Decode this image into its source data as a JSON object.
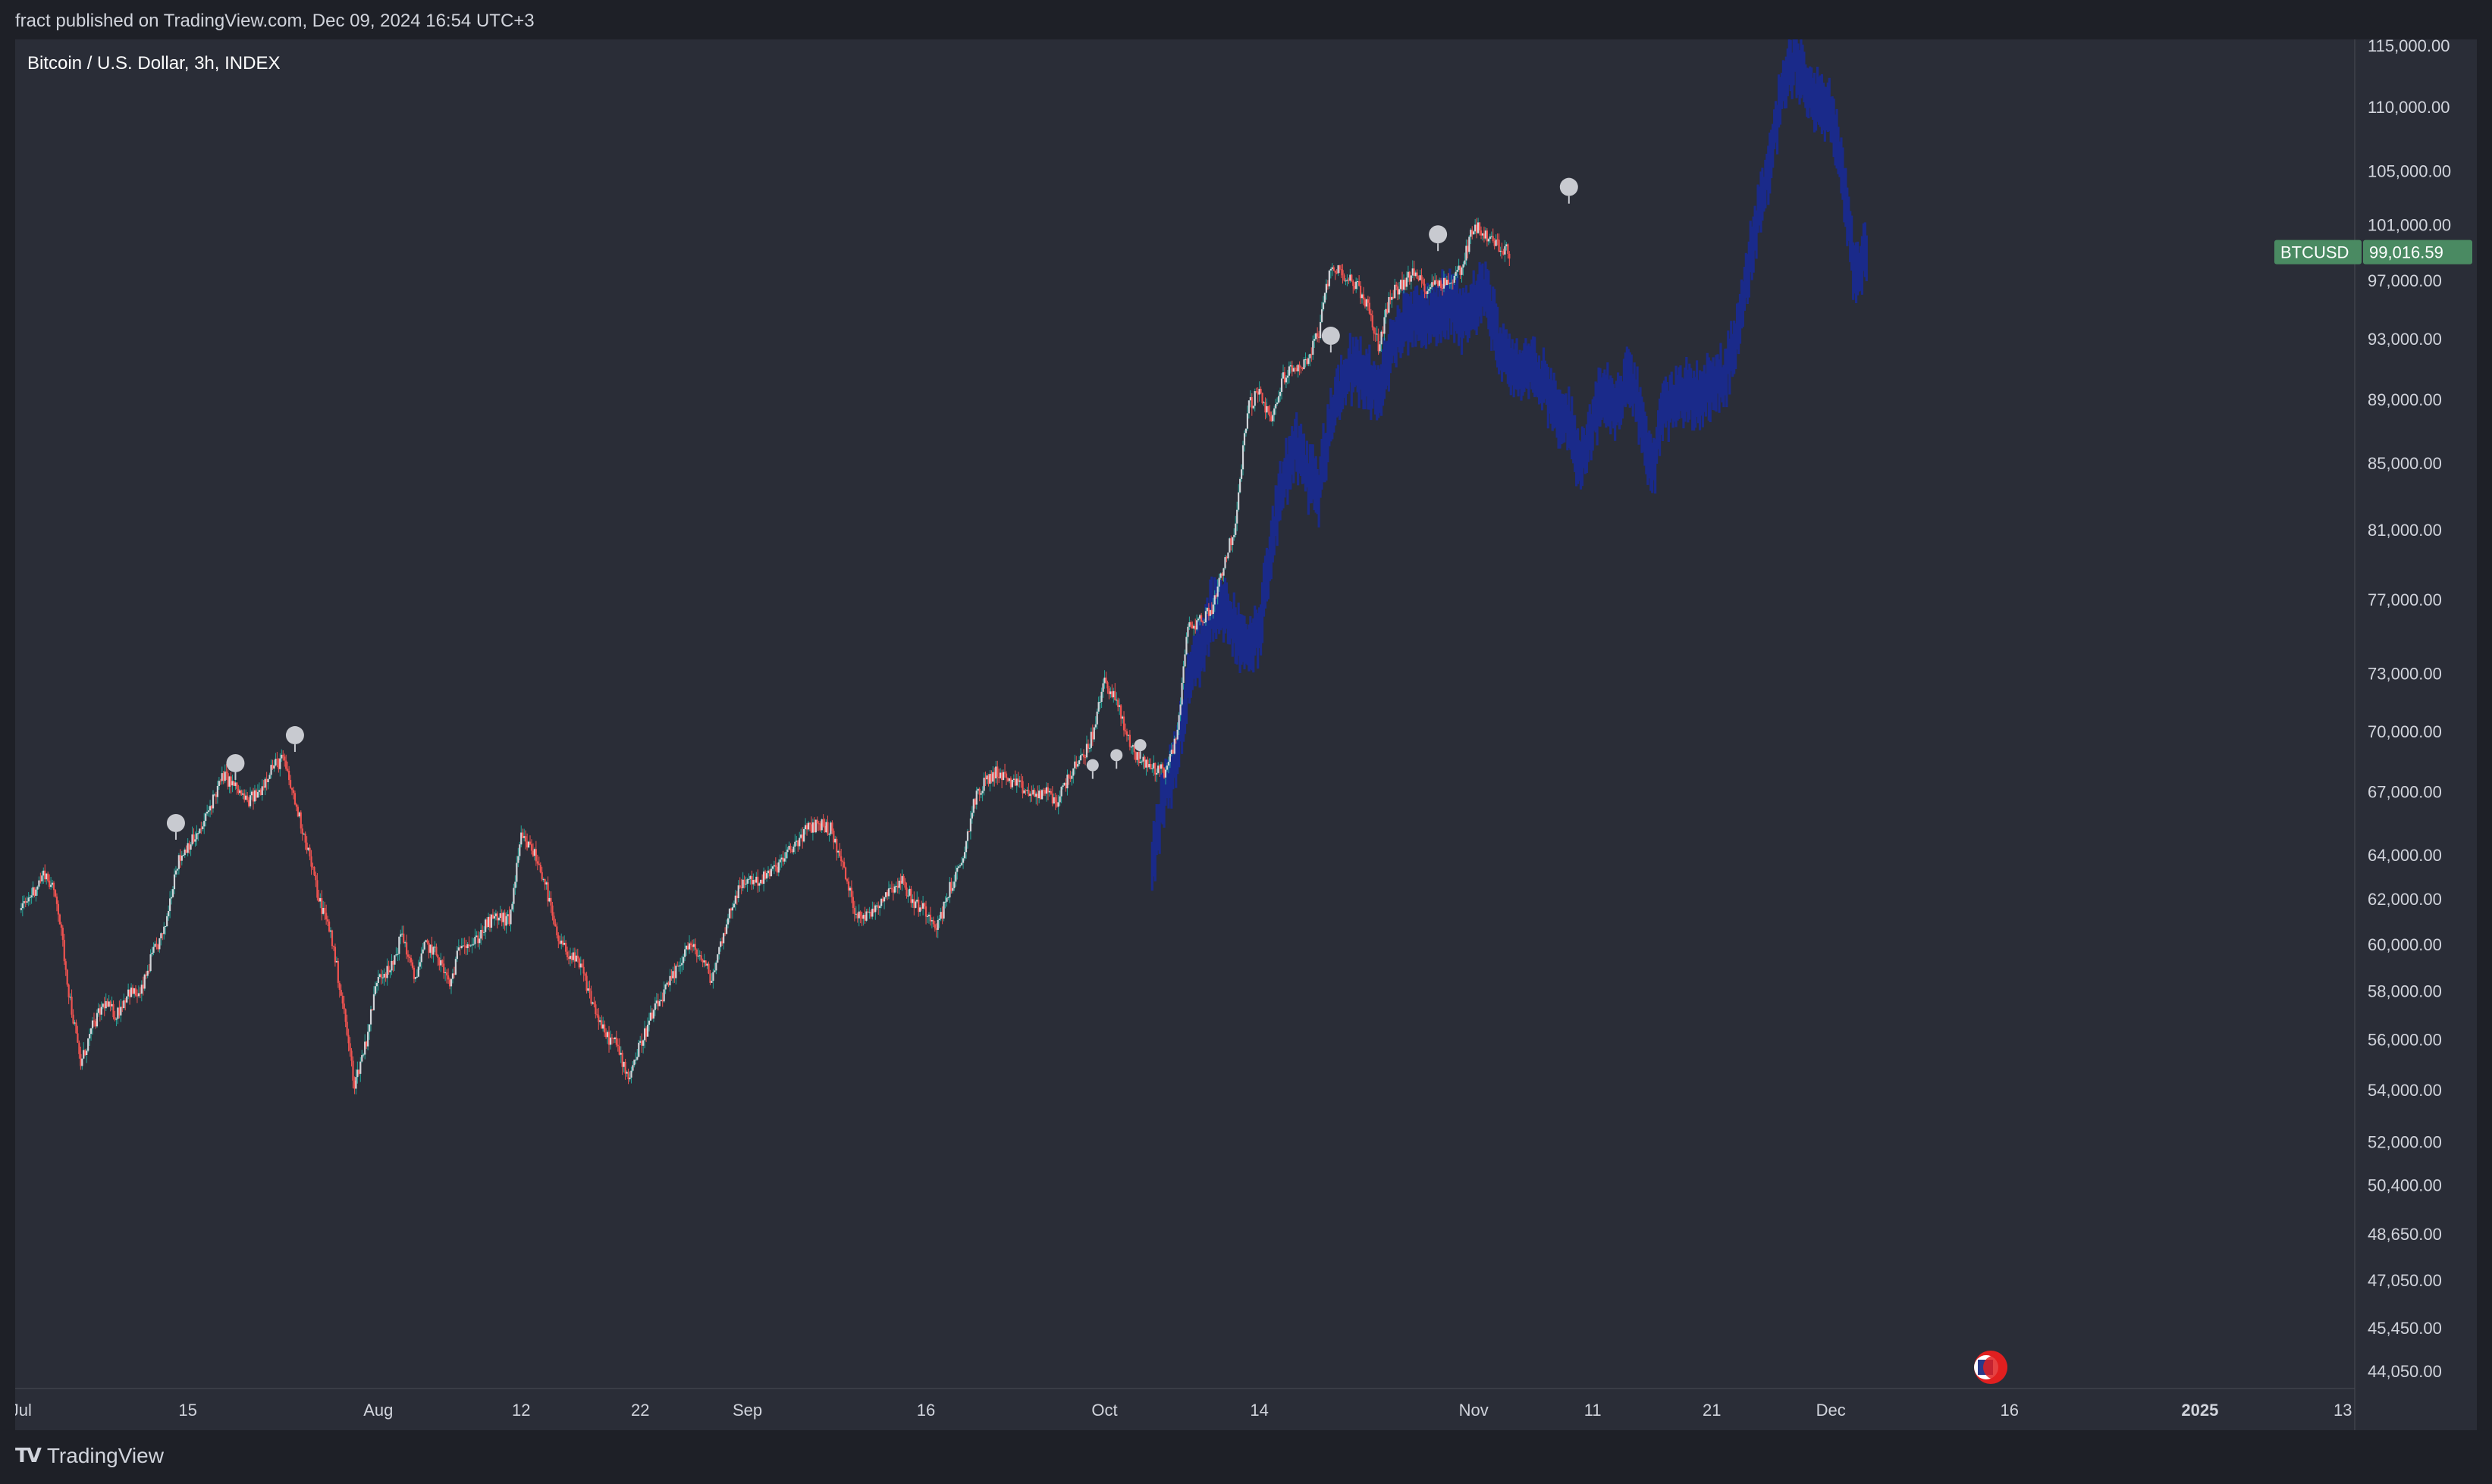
{
  "header": {
    "published": "fract published on TradingView.com, Dec 09, 2024 16:54 UTC+3"
  },
  "symbol": {
    "title": "Bitcoin / U.S. Dollar, 3h, INDEX"
  },
  "price_tag": {
    "symbol": "BTCUSD",
    "price": "99,016.59",
    "value": 99016.59,
    "color": "#4a8a62"
  },
  "footer": {
    "brand": "TradingView",
    "logo_icon": "tradingview-logo-icon"
  },
  "event_icon": "us-flag-event-icon",
  "colors": {
    "up": "#26a69a",
    "down": "#ef5350",
    "projection": "#1a2a8a",
    "marker": "#c8cad0"
  },
  "chart_data": {
    "type": "candlestick",
    "title": "Bitcoin / U.S. Dollar, 3h, INDEX",
    "scale": "log",
    "ylim": [
      43500,
      115500
    ],
    "y_ticks": [
      "115,000.00",
      "110,000.00",
      "105,000.00",
      "101,000.00",
      "97,000.00",
      "93,000.00",
      "89,000.00",
      "85,000.00",
      "81,000.00",
      "77,000.00",
      "73,000.00",
      "70,000.00",
      "67,000.00",
      "64,000.00",
      "62,000.00",
      "60,000.00",
      "58,000.00",
      "56,000.00",
      "54,000.00",
      "52,000.00",
      "50,400.00",
      "48,650.00",
      "47,050.00",
      "45,450.00",
      "44,050.00"
    ],
    "x_ticks": [
      {
        "label": "Jul",
        "day": 1
      },
      {
        "label": "15",
        "day": 15
      },
      {
        "label": "Aug",
        "day": 31
      },
      {
        "label": "12",
        "day": 43
      },
      {
        "label": "22",
        "day": 53
      },
      {
        "label": "Sep",
        "day": 62
      },
      {
        "label": "16",
        "day": 77
      },
      {
        "label": "Oct",
        "day": 92
      },
      {
        "label": "14",
        "day": 105
      },
      {
        "label": "Nov",
        "day": 123
      },
      {
        "label": "11",
        "day": 133
      },
      {
        "label": "21",
        "day": 143
      },
      {
        "label": "Dec",
        "day": 153
      },
      {
        "label": "16",
        "day": 168
      },
      {
        "label": "2025",
        "day": 184,
        "bold": true
      },
      {
        "label": "13",
        "day": 196
      }
    ],
    "series": [
      {
        "name": "BTCUSD",
        "points": [
          [
            1,
            61500
          ],
          [
            3,
            63200
          ],
          [
            4,
            62000
          ],
          [
            5,
            58000
          ],
          [
            6,
            55000
          ],
          [
            7,
            56500
          ],
          [
            8,
            57500
          ],
          [
            9,
            57000
          ],
          [
            10,
            58000
          ],
          [
            11,
            57800
          ],
          [
            12,
            59500
          ],
          [
            13,
            60500
          ],
          [
            14,
            63500
          ],
          [
            15,
            64500
          ],
          [
            16,
            65000
          ],
          [
            17,
            66500
          ],
          [
            18,
            67800
          ],
          [
            19,
            67200
          ],
          [
            20,
            66500
          ],
          [
            21,
            67000
          ],
          [
            22,
            68200
          ],
          [
            23,
            68600
          ],
          [
            24,
            66500
          ],
          [
            25,
            64500
          ],
          [
            26,
            62000
          ],
          [
            27,
            60500
          ],
          [
            28,
            57500
          ],
          [
            29,
            54200
          ],
          [
            30,
            56000
          ],
          [
            31,
            58800
          ],
          [
            32,
            58800
          ],
          [
            33,
            60500
          ],
          [
            34,
            58500
          ],
          [
            35,
            60000
          ],
          [
            36,
            59500
          ],
          [
            37,
            58200
          ],
          [
            38,
            60200
          ],
          [
            39,
            60000
          ],
          [
            40,
            60800
          ],
          [
            41,
            61200
          ],
          [
            42,
            61000
          ],
          [
            43,
            64800
          ],
          [
            44,
            64200
          ],
          [
            45,
            62800
          ],
          [
            46,
            60200
          ],
          [
            47,
            59600
          ],
          [
            48,
            59000
          ],
          [
            49,
            57500
          ],
          [
            50,
            56200
          ],
          [
            51,
            55800
          ],
          [
            52,
            54500
          ],
          [
            53,
            55800
          ],
          [
            54,
            57000
          ],
          [
            55,
            57900
          ],
          [
            56,
            58800
          ],
          [
            57,
            60000
          ],
          [
            58,
            59500
          ],
          [
            59,
            58500
          ],
          [
            60,
            60500
          ],
          [
            61,
            62200
          ],
          [
            62,
            62900
          ],
          [
            63,
            62800
          ],
          [
            64,
            63200
          ],
          [
            65,
            63800
          ],
          [
            66,
            64500
          ],
          [
            67,
            65200
          ],
          [
            68,
            65500
          ],
          [
            69,
            65200
          ],
          [
            70,
            63500
          ],
          [
            71,
            61500
          ],
          [
            72,
            61200
          ],
          [
            73,
            61800
          ],
          [
            74,
            62500
          ],
          [
            75,
            62800
          ],
          [
            76,
            61800
          ],
          [
            77,
            61500
          ],
          [
            78,
            60800
          ],
          [
            79,
            62500
          ],
          [
            80,
            63500
          ],
          [
            81,
            66500
          ],
          [
            82,
            67500
          ],
          [
            83,
            68000
          ],
          [
            84,
            67500
          ],
          [
            85,
            67200
          ],
          [
            86,
            66800
          ],
          [
            87,
            67000
          ],
          [
            88,
            66500
          ],
          [
            89,
            67800
          ],
          [
            90,
            68500
          ],
          [
            91,
            69800
          ],
          [
            92,
            72700
          ],
          [
            93,
            71500
          ],
          [
            94,
            69500
          ],
          [
            95,
            68500
          ],
          [
            96,
            68200
          ],
          [
            97,
            68000
          ],
          [
            98,
            69500
          ],
          [
            99,
            75500
          ],
          [
            100,
            75800
          ],
          [
            101,
            76500
          ],
          [
            102,
            79000
          ],
          [
            103,
            81200
          ],
          [
            104,
            88500
          ],
          [
            105,
            89500
          ],
          [
            106,
            87500
          ],
          [
            107,
            90500
          ],
          [
            108,
            91000
          ],
          [
            109,
            91500
          ],
          [
            110,
            93500
          ],
          [
            111,
            98000
          ],
          [
            112,
            97500
          ],
          [
            113,
            96800
          ],
          [
            114,
            95500
          ],
          [
            115,
            92500
          ],
          [
            116,
            96000
          ],
          [
            117,
            96800
          ],
          [
            118,
            97500
          ],
          [
            119,
            96500
          ],
          [
            120,
            97000
          ],
          [
            121,
            96800
          ],
          [
            122,
            98000
          ],
          [
            123,
            101000
          ],
          [
            124,
            100200
          ],
          [
            125,
            99500
          ],
          [
            126,
            99016
          ]
        ]
      },
      {
        "name": "projection",
        "points": [
          [
            96,
            63500
          ],
          [
            97,
            67000
          ],
          [
            98,
            68500
          ],
          [
            99,
            72500
          ],
          [
            100,
            74000
          ],
          [
            101,
            76500
          ],
          [
            102,
            76800
          ],
          [
            103,
            75500
          ],
          [
            104,
            74200
          ],
          [
            105,
            75200
          ],
          [
            106,
            80000
          ],
          [
            107,
            84000
          ],
          [
            108,
            86000
          ],
          [
            109,
            84500
          ],
          [
            110,
            83500
          ],
          [
            111,
            88000
          ],
          [
            112,
            90000
          ],
          [
            113,
            91500
          ],
          [
            114,
            90200
          ],
          [
            115,
            89500
          ],
          [
            116,
            92000
          ],
          [
            117,
            94000
          ],
          [
            118,
            94500
          ],
          [
            119,
            94200
          ],
          [
            120,
            94800
          ],
          [
            121,
            95500
          ],
          [
            122,
            94500
          ],
          [
            123,
            95200
          ],
          [
            124,
            96500
          ],
          [
            125,
            93000
          ],
          [
            126,
            91500
          ],
          [
            127,
            90500
          ],
          [
            128,
            91200
          ],
          [
            129,
            90000
          ],
          [
            130,
            88500
          ],
          [
            131,
            87500
          ],
          [
            132,
            85000
          ],
          [
            133,
            87500
          ],
          [
            134,
            89500
          ],
          [
            135,
            88000
          ],
          [
            136,
            91000
          ],
          [
            137,
            88000
          ],
          [
            138,
            84500
          ],
          [
            139,
            88500
          ],
          [
            140,
            89000
          ],
          [
            141,
            89300
          ],
          [
            142,
            89200
          ],
          [
            143,
            89800
          ],
          [
            144,
            90500
          ],
          [
            145,
            93000
          ],
          [
            146,
            97500
          ],
          [
            147,
            102000
          ],
          [
            148,
            106500
          ],
          [
            149,
            112000
          ],
          [
            150,
            114000
          ],
          [
            151,
            111500
          ],
          [
            152,
            110500
          ],
          [
            153,
            109500
          ],
          [
            154,
            104500
          ],
          [
            155,
            97500
          ],
          [
            156,
            99000
          ]
        ]
      }
    ],
    "markers": [
      {
        "day": 14,
        "price": 65500
      },
      {
        "day": 19,
        "price": 68400
      },
      {
        "day": 24,
        "price": 69800
      },
      {
        "day": 91,
        "price": 68300
      },
      {
        "day": 93,
        "price": 68800
      },
      {
        "day": 95,
        "price": 69300
      },
      {
        "day": 111,
        "price": 93200
      },
      {
        "day": 120,
        "price": 100300
      },
      {
        "day": 131,
        "price": 103800
      }
    ],
    "grid": false,
    "legend": "none"
  }
}
